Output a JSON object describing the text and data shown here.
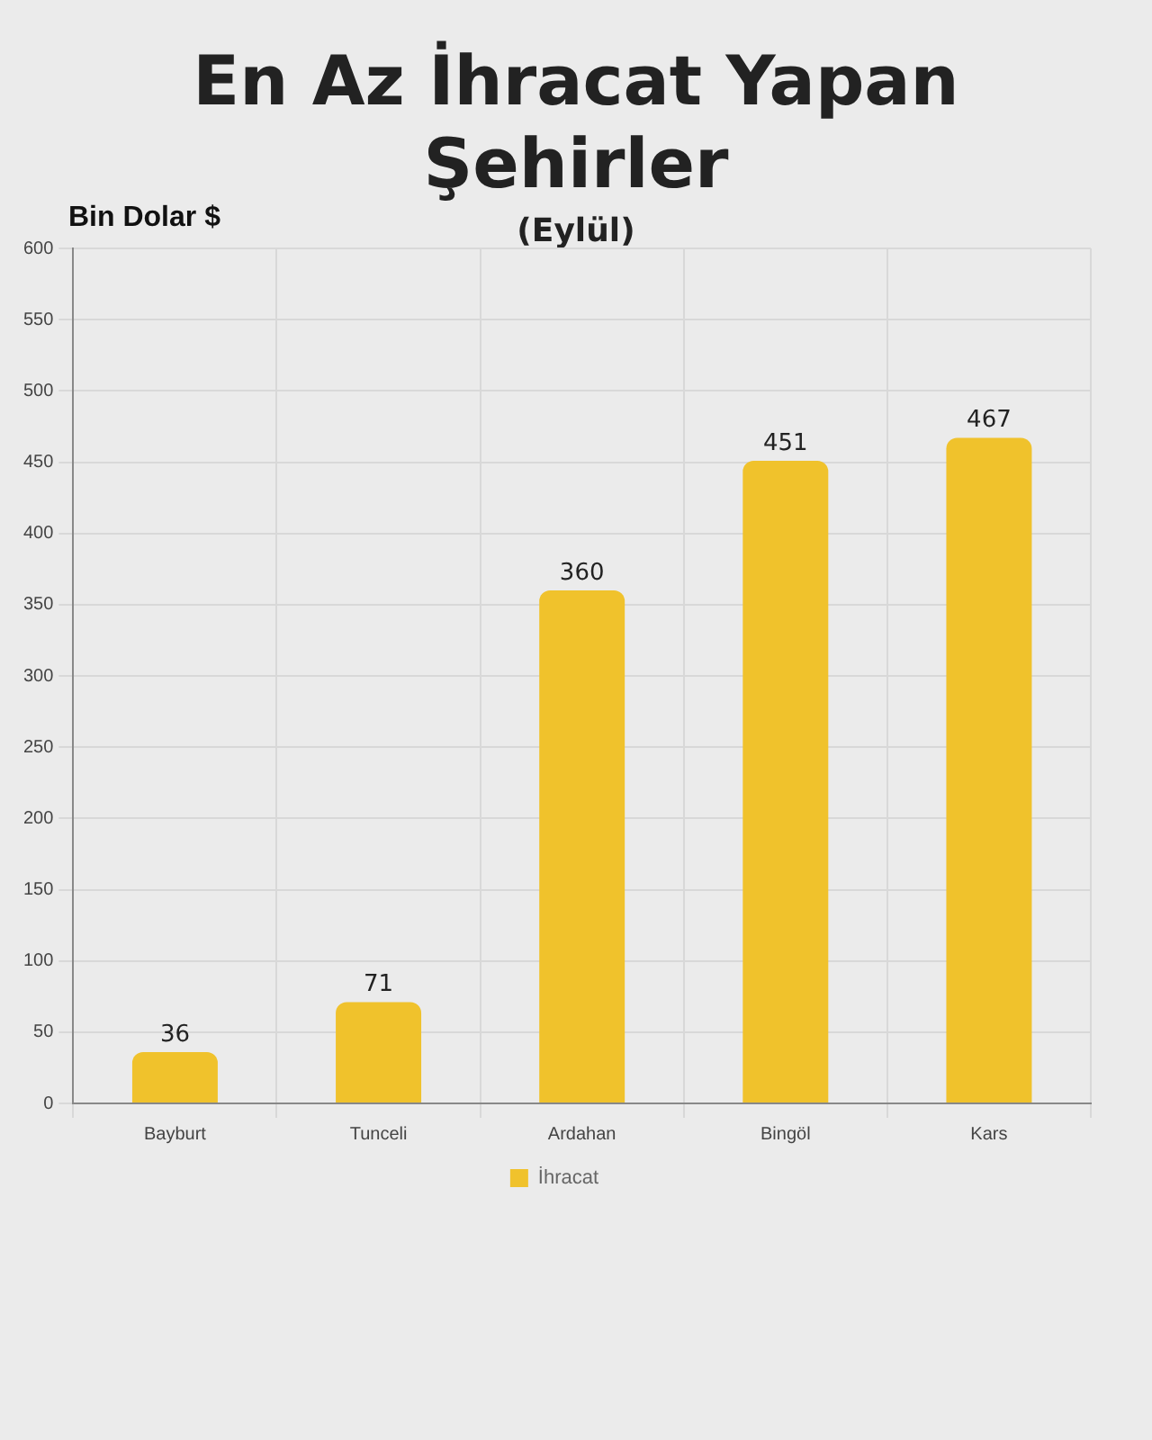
{
  "chart_data": {
    "type": "bar",
    "title": "En Az İhracat Yapan Şehirler",
    "subtitle": "(Eylül)",
    "ylabel": "Bin Dolar $",
    "categories": [
      "Bayburt",
      "Tunceli",
      "Ardahan",
      "Bingöl",
      "Kars"
    ],
    "series": [
      {
        "name": "İhracat",
        "color": "#f0c22c",
        "values": [
          36,
          71,
          360,
          451,
          467
        ]
      }
    ],
    "ylim": [
      0,
      600
    ],
    "yticks": [
      0,
      50,
      100,
      150,
      200,
      250,
      300,
      350,
      400,
      450,
      500,
      550,
      600
    ],
    "grid": true,
    "legend": "bottom",
    "data_labels": true
  }
}
